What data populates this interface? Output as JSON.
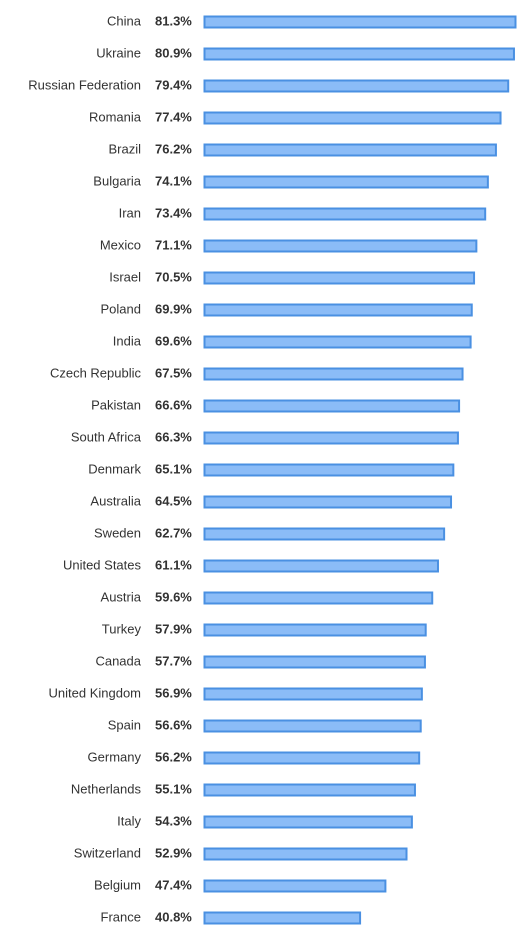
{
  "chart_data": {
    "type": "bar",
    "orientation": "horizontal",
    "categories": [
      "China",
      "Ukraine",
      "Russian Federation",
      "Romania",
      "Brazil",
      "Bulgaria",
      "Iran",
      "Mexico",
      "Israel",
      "Poland",
      "India",
      "Czech Republic",
      "Pakistan",
      "South Africa",
      "Denmark",
      "Australia",
      "Sweden",
      "United States",
      "Austria",
      "Turkey",
      "Canada",
      "United Kingdom",
      "Spain",
      "Germany",
      "Netherlands",
      "Italy",
      "Switzerland",
      "Belgium",
      "France"
    ],
    "values": [
      81.3,
      80.9,
      79.4,
      77.4,
      76.2,
      74.1,
      73.4,
      71.1,
      70.5,
      69.9,
      69.6,
      67.5,
      66.6,
      66.3,
      65.1,
      64.5,
      62.7,
      61.1,
      59.6,
      57.9,
      57.7,
      56.9,
      56.6,
      56.2,
      55.1,
      54.3,
      52.9,
      47.4,
      40.8
    ],
    "value_labels": [
      "81.3%",
      "80.9%",
      "79.4%",
      "77.4%",
      "76.2%",
      "74.1%",
      "73.4%",
      "71.1%",
      "70.5%",
      "69.9%",
      "69.6%",
      "67.5%",
      "66.6%",
      "66.3%",
      "65.1%",
      "64.5%",
      "62.7%",
      "61.1%",
      "59.6%",
      "57.9%",
      "57.7%",
      "56.9%",
      "56.6%",
      "56.2%",
      "55.1%",
      "54.3%",
      "52.9%",
      "47.4%",
      "40.8%"
    ],
    "color": "#8bbcf7",
    "border_color": "#4a90e2"
  }
}
